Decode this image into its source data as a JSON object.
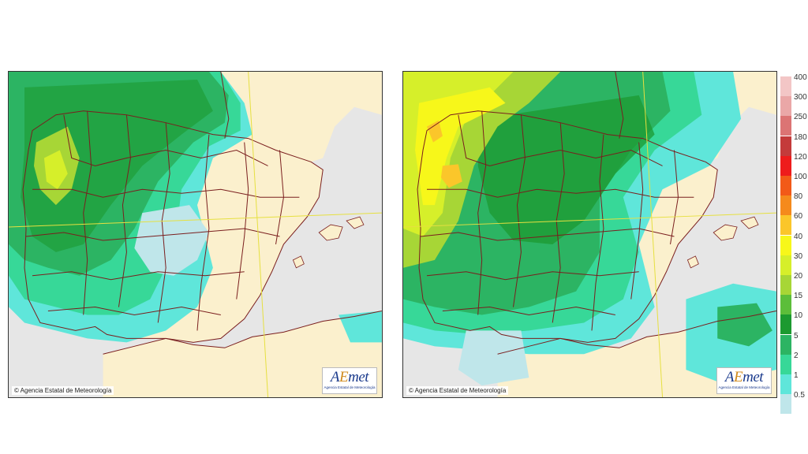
{
  "maps": [
    {
      "id": "left",
      "copyright": "© Agencia Estatal de Meteorología",
      "logo": {
        "mark_a": "A",
        "mark_e": "E",
        "mark_rest": "met",
        "subtitle": "Agencia Estatal de Meteorología"
      }
    },
    {
      "id": "right",
      "copyright": "© Agencia Estatal de Meteorología",
      "logo": {
        "mark_a": "A",
        "mark_e": "E",
        "mark_rest": "met",
        "subtitle": "Agencia Estatal de Meteorología"
      }
    }
  ],
  "legend": {
    "items": [
      {
        "label": "400",
        "color": "#f3c6c6"
      },
      {
        "label": "300",
        "color": "#eaa7a7"
      },
      {
        "label": "250",
        "color": "#dc7474"
      },
      {
        "label": "180",
        "color": "#c43b3b"
      },
      {
        "label": "120",
        "color": "#ee1c1c"
      },
      {
        "label": "100",
        "color": "#f25a18"
      },
      {
        "label": "80",
        "color": "#f58a1c"
      },
      {
        "label": "60",
        "color": "#fbc62a"
      },
      {
        "label": "40",
        "color": "#f7f71a"
      },
      {
        "label": "30",
        "color": "#d6ef2a"
      },
      {
        "label": "20",
        "color": "#a7d636"
      },
      {
        "label": "15",
        "color": "#5cbe3a"
      },
      {
        "label": "10",
        "color": "#1c9a30"
      },
      {
        "label": "5",
        "color": "#2cb463"
      },
      {
        "label": "2",
        "color": "#37d898"
      },
      {
        "label": "1",
        "color": "#5fe6da"
      },
      {
        "label": "0.5",
        "color": "#bfe6ea"
      }
    ]
  },
  "colors": {
    "sea": "#e6e6e6",
    "land": "#fbf0cd",
    "border": "#7a1e1e",
    "graticule": "#e6e040"
  }
}
